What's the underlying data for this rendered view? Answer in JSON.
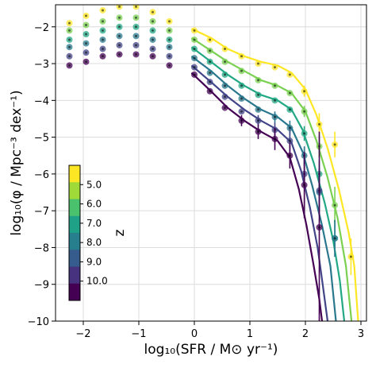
{
  "chart_data": {
    "type": "scatter",
    "xlabel": "log₁₀(SFR / M⊙ yr⁻¹)",
    "ylabel": "log₁₀(φ / Mpc⁻³ dex⁻¹)",
    "xlim": [
      -2.5,
      3.1
    ],
    "ylim": [
      -10,
      -1.4
    ],
    "grid": true,
    "x_ticks": [
      -2,
      -1,
      0,
      1,
      2,
      3
    ],
    "x_tick_labels": [
      "−2",
      "−1",
      "0",
      "1",
      "2",
      "3"
    ],
    "y_ticks": [
      -2,
      -3,
      -4,
      -5,
      -6,
      -7,
      -8,
      -9,
      -10
    ],
    "y_tick_labels": [
      "−2",
      "−3",
      "−4",
      "−5",
      "−6",
      "−7",
      "−8",
      "−9",
      "−10"
    ],
    "colorbar": {
      "label": "z",
      "placement": "lower-left",
      "values": [
        5.0,
        6.0,
        7.0,
        8.0,
        9.0,
        10.0
      ],
      "tick_labels": [
        "5.0",
        "6.0",
        "7.0",
        "8.0",
        "9.0",
        "10.0"
      ],
      "colors": [
        "#fde725",
        "#a0da39",
        "#4ac16d",
        "#1fa187",
        "#277f8e",
        "#365c8d",
        "#46327e",
        "#440154"
      ]
    },
    "series": [
      {
        "z": 5.0,
        "color": "#fde725",
        "points_low": [
          [
            -2.25,
            -1.9
          ],
          [
            -1.95,
            -1.7
          ],
          [
            -1.65,
            -1.55
          ],
          [
            -1.35,
            -1.45
          ],
          [
            -1.05,
            -1.45
          ],
          [
            -0.75,
            -1.6
          ],
          [
            -0.45,
            -1.85
          ]
        ],
        "points_high": [
          [
            0.0,
            -2.1
          ],
          [
            0.28,
            -2.35
          ],
          [
            0.55,
            -2.6
          ],
          [
            0.85,
            -2.8
          ],
          [
            1.15,
            -3.0
          ],
          [
            1.45,
            -3.1
          ],
          [
            1.72,
            -3.3
          ],
          [
            1.98,
            -3.75
          ],
          [
            2.25,
            -4.65
          ],
          [
            2.53,
            -5.2
          ],
          [
            2.82,
            -8.25
          ]
        ],
        "errors_high": [
          0,
          0,
          0,
          0,
          0,
          0,
          0,
          0.15,
          0.3,
          0.35,
          0.5
        ],
        "curve": [
          [
            -0.05,
            -2.05
          ],
          [
            0.3,
            -2.3
          ],
          [
            0.6,
            -2.6
          ],
          [
            0.9,
            -2.8
          ],
          [
            1.2,
            -2.95
          ],
          [
            1.5,
            -3.05
          ],
          [
            1.75,
            -3.25
          ],
          [
            2.0,
            -3.7
          ],
          [
            2.2,
            -4.4
          ],
          [
            2.4,
            -5.3
          ],
          [
            2.6,
            -6.4
          ],
          [
            2.78,
            -7.6
          ],
          [
            2.88,
            -8.5
          ],
          [
            2.95,
            -10.0
          ]
        ]
      },
      {
        "z": 6.0,
        "color": "#7ad151",
        "points_low": [
          [
            -2.25,
            -2.1
          ],
          [
            -1.95,
            -1.95
          ],
          [
            -1.65,
            -1.85
          ],
          [
            -1.35,
            -1.75
          ],
          [
            -1.05,
            -1.75
          ],
          [
            -0.75,
            -1.85
          ],
          [
            -0.45,
            -2.1
          ]
        ],
        "points_high": [
          [
            0.0,
            -2.35
          ],
          [
            0.28,
            -2.65
          ],
          [
            0.55,
            -2.95
          ],
          [
            0.85,
            -3.2
          ],
          [
            1.15,
            -3.45
          ],
          [
            1.45,
            -3.6
          ],
          [
            1.72,
            -3.8
          ],
          [
            1.98,
            -4.3
          ],
          [
            2.25,
            -5.25
          ],
          [
            2.53,
            -6.85
          ]
        ],
        "errors_high": [
          0,
          0,
          0,
          0,
          0,
          0,
          0,
          0.15,
          0.3,
          0.5
        ],
        "curve": [
          [
            -0.05,
            -2.3
          ],
          [
            0.3,
            -2.65
          ],
          [
            0.6,
            -2.95
          ],
          [
            0.9,
            -3.2
          ],
          [
            1.2,
            -3.45
          ],
          [
            1.5,
            -3.6
          ],
          [
            1.75,
            -3.8
          ],
          [
            2.0,
            -4.3
          ],
          [
            2.2,
            -5.1
          ],
          [
            2.4,
            -6.1
          ],
          [
            2.58,
            -7.2
          ],
          [
            2.73,
            -8.5
          ],
          [
            2.83,
            -10.0
          ]
        ]
      },
      {
        "z": 7.0,
        "color": "#22a884",
        "points_low": [
          [
            -2.25,
            -2.35
          ],
          [
            -1.95,
            -2.2
          ],
          [
            -1.65,
            -2.1
          ],
          [
            -1.35,
            -2.0
          ],
          [
            -1.05,
            -2.0
          ],
          [
            -0.75,
            -2.1
          ],
          [
            -0.45,
            -2.35
          ]
        ],
        "points_high": [
          [
            0.0,
            -2.6
          ],
          [
            0.28,
            -2.95
          ],
          [
            0.55,
            -3.3
          ],
          [
            0.85,
            -3.6
          ],
          [
            1.15,
            -3.85
          ],
          [
            1.45,
            -4.0
          ],
          [
            1.72,
            -4.25
          ],
          [
            1.98,
            -4.9
          ],
          [
            2.25,
            -6.0
          ],
          [
            2.53,
            -7.75
          ]
        ],
        "errors_high": [
          0,
          0,
          0,
          0,
          0,
          0,
          0,
          0.2,
          0.35,
          0.5
        ],
        "curve": [
          [
            -0.05,
            -2.55
          ],
          [
            0.3,
            -2.95
          ],
          [
            0.6,
            -3.3
          ],
          [
            0.9,
            -3.6
          ],
          [
            1.2,
            -3.85
          ],
          [
            1.5,
            -4.0
          ],
          [
            1.75,
            -4.25
          ],
          [
            1.95,
            -4.8
          ],
          [
            2.15,
            -5.7
          ],
          [
            2.35,
            -6.8
          ],
          [
            2.5,
            -7.8
          ],
          [
            2.62,
            -8.9
          ],
          [
            2.7,
            -10.0
          ]
        ]
      },
      {
        "z": 8.0,
        "color": "#2a788e",
        "points_low": [
          [
            -2.25,
            -2.55
          ],
          [
            -1.95,
            -2.45
          ],
          [
            -1.65,
            -2.35
          ],
          [
            -1.35,
            -2.25
          ],
          [
            -1.05,
            -2.25
          ],
          [
            -0.75,
            -2.35
          ],
          [
            -0.45,
            -2.55
          ]
        ],
        "points_high": [
          [
            0.0,
            -2.85
          ],
          [
            0.28,
            -3.25
          ],
          [
            0.55,
            -3.6
          ],
          [
            0.85,
            -3.95
          ],
          [
            1.15,
            -4.25
          ],
          [
            1.45,
            -4.45
          ],
          [
            1.72,
            -4.75
          ],
          [
            1.98,
            -5.5
          ],
          [
            2.25,
            -6.5
          ],
          [
            2.53,
            -7.75
          ]
        ],
        "errors_high": [
          0,
          0,
          0,
          0,
          0,
          0.15,
          0.2,
          0.25,
          0.4,
          0.5
        ],
        "curve": [
          [
            -0.05,
            -2.8
          ],
          [
            0.3,
            -3.2
          ],
          [
            0.6,
            -3.6
          ],
          [
            0.9,
            -3.95
          ],
          [
            1.2,
            -4.25
          ],
          [
            1.5,
            -4.45
          ],
          [
            1.75,
            -4.75
          ],
          [
            1.95,
            -5.4
          ],
          [
            2.12,
            -6.3
          ],
          [
            2.3,
            -7.4
          ],
          [
            2.45,
            -8.5
          ],
          [
            2.55,
            -10.0
          ]
        ]
      },
      {
        "z": 9.0,
        "color": "#414487",
        "points_low": [
          [
            -2.25,
            -2.8
          ],
          [
            -1.95,
            -2.7
          ],
          [
            -1.65,
            -2.6
          ],
          [
            -1.35,
            -2.5
          ],
          [
            -1.05,
            -2.5
          ],
          [
            -0.75,
            -2.6
          ],
          [
            -0.45,
            -2.8
          ]
        ],
        "points_high": [
          [
            0.0,
            -3.1
          ],
          [
            0.28,
            -3.5
          ],
          [
            0.55,
            -3.9
          ],
          [
            0.85,
            -4.3
          ],
          [
            1.15,
            -4.55
          ],
          [
            1.45,
            -4.8
          ],
          [
            1.72,
            -5.1
          ],
          [
            1.98,
            -6.0
          ],
          [
            2.25,
            -6.45
          ]
        ],
        "errors_high": [
          0,
          0,
          0,
          0,
          0.15,
          0.2,
          0.3,
          0.4,
          0.6
        ],
        "curve": [
          [
            -0.05,
            -3.05
          ],
          [
            0.3,
            -3.5
          ],
          [
            0.6,
            -3.9
          ],
          [
            0.9,
            -4.25
          ],
          [
            1.2,
            -4.55
          ],
          [
            1.5,
            -4.8
          ],
          [
            1.75,
            -5.15
          ],
          [
            1.92,
            -5.9
          ],
          [
            2.08,
            -6.9
          ],
          [
            2.22,
            -8.0
          ],
          [
            2.32,
            -9.1
          ],
          [
            2.4,
            -10.0
          ]
        ]
      },
      {
        "z": 10.0,
        "color": "#440154",
        "points_low": [
          [
            -2.25,
            -3.05
          ],
          [
            -1.95,
            -2.95
          ],
          [
            -1.65,
            -2.8
          ],
          [
            -1.35,
            -2.75
          ],
          [
            -1.05,
            -2.75
          ],
          [
            -0.75,
            -2.8
          ],
          [
            -0.45,
            -3.05
          ]
        ],
        "points_high": [
          [
            0.0,
            -3.3
          ],
          [
            0.28,
            -3.75
          ],
          [
            0.55,
            -4.2
          ],
          [
            0.85,
            -4.55
          ],
          [
            1.15,
            -4.85
          ],
          [
            1.45,
            -5.05
          ],
          [
            1.72,
            -5.5
          ],
          [
            1.98,
            -6.3
          ],
          [
            2.25,
            -7.45
          ]
        ],
        "errors_high": [
          0,
          0,
          0,
          0.15,
          0.2,
          0.3,
          0.35,
          0.9,
          2.6
        ],
        "curve": [
          [
            -0.05,
            -3.25
          ],
          [
            0.3,
            -3.75
          ],
          [
            0.6,
            -4.2
          ],
          [
            0.9,
            -4.55
          ],
          [
            1.2,
            -4.85
          ],
          [
            1.5,
            -5.1
          ],
          [
            1.72,
            -5.55
          ],
          [
            1.88,
            -6.4
          ],
          [
            2.02,
            -7.4
          ],
          [
            2.15,
            -8.5
          ],
          [
            2.25,
            -9.4
          ],
          [
            2.3,
            -10.0
          ]
        ]
      }
    ]
  }
}
